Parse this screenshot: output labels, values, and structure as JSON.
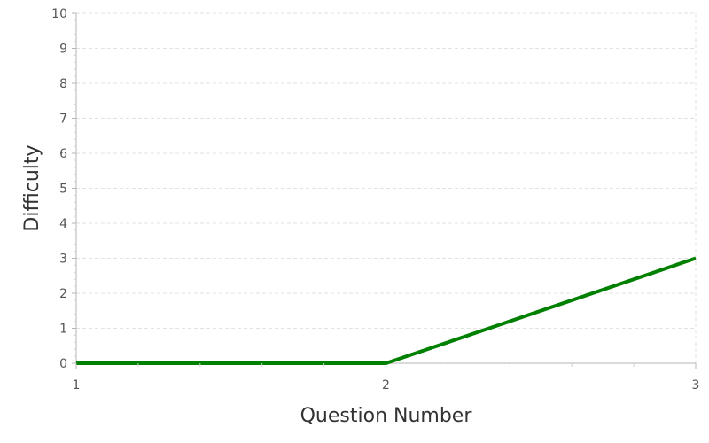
{
  "chart_data": {
    "type": "line",
    "title": "",
    "xlabel": "Question Number",
    "ylabel": "Difficulty",
    "xlim": [
      1,
      3
    ],
    "ylim": [
      0,
      10
    ],
    "x_ticks": [
      "1",
      "2",
      "3"
    ],
    "y_ticks": [
      "0",
      "1",
      "2",
      "3",
      "4",
      "5",
      "6",
      "7",
      "8",
      "9",
      "10"
    ],
    "grid": true,
    "series": [
      {
        "x": [
          1,
          2,
          3
        ],
        "y": [
          0,
          0,
          3
        ],
        "color": "#008000"
      }
    ]
  }
}
